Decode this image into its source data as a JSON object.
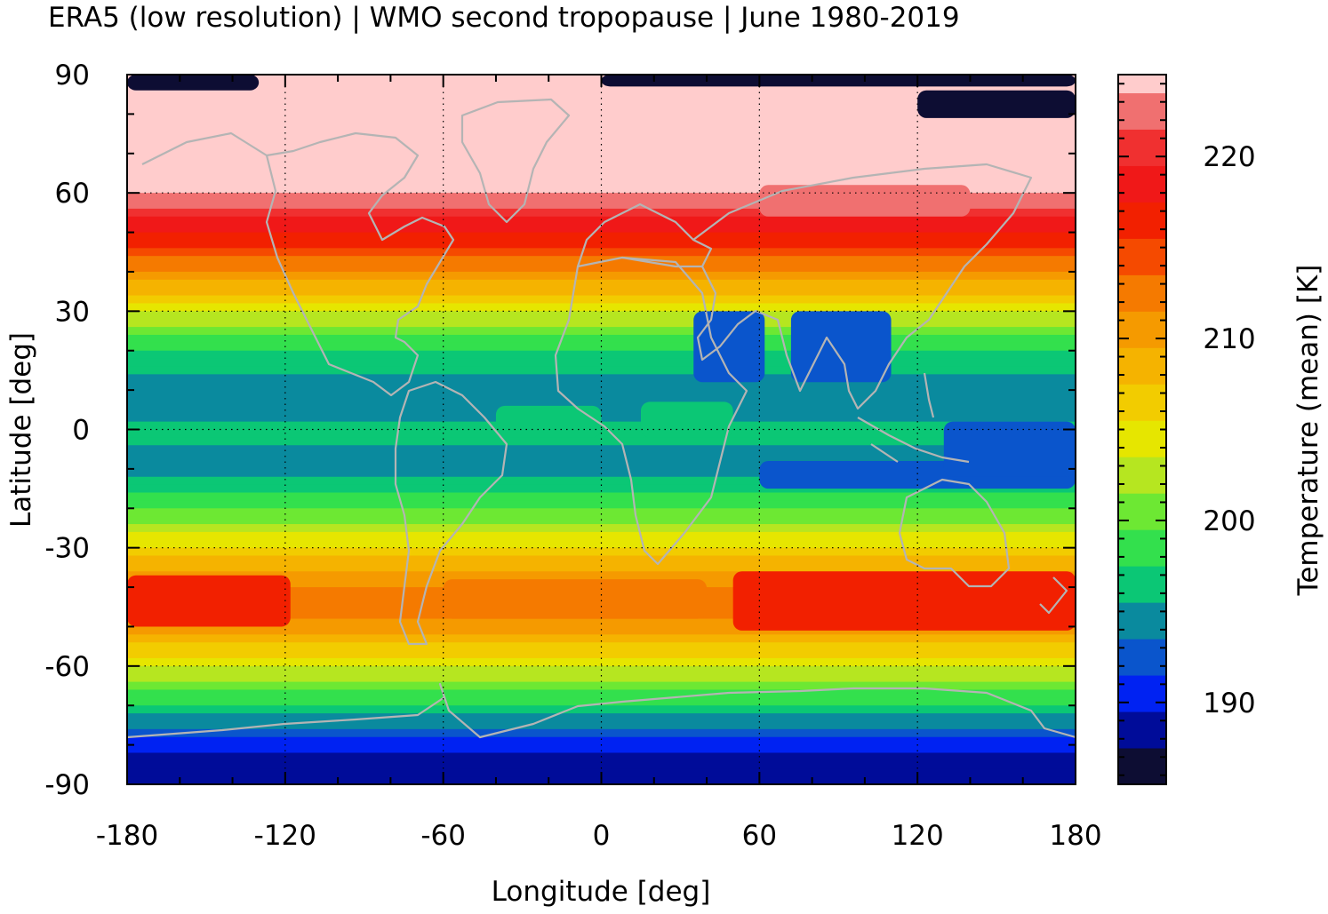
{
  "chart_data": {
    "type": "heatmap",
    "title": "ERA5 (low resolution) | WMO second tropopause | June 1980-2019",
    "xlabel": "Longitude [deg]",
    "ylabel": "Latitude [deg]",
    "colorbar_label": "Temperature (mean) [K]",
    "xlim": [
      -180,
      180
    ],
    "ylim": [
      -90,
      90
    ],
    "xticks": [
      "-180",
      "-120",
      "-60",
      "0",
      "60",
      "120",
      "180"
    ],
    "yticks": [
      "90",
      "60",
      "30",
      "0",
      "-30",
      "-60",
      "-90"
    ],
    "colorbar_range": [
      185.5,
      224.5
    ],
    "colorbar_ticks": [
      "220",
      "210",
      "200",
      "190"
    ],
    "colorbar_levels": [
      {
        "min": 185.5,
        "max": 187.5,
        "color": "#0d0d33"
      },
      {
        "min": 187.5,
        "max": 189.5,
        "color": "#000c99"
      },
      {
        "min": 189.5,
        "max": 191.5,
        "color": "#0022f2"
      },
      {
        "min": 191.5,
        "max": 193.5,
        "color": "#0a55cc"
      },
      {
        "min": 193.5,
        "max": 195.5,
        "color": "#0a8a9e"
      },
      {
        "min": 195.5,
        "max": 197.5,
        "color": "#0bc775"
      },
      {
        "min": 197.5,
        "max": 199.5,
        "color": "#33e04d"
      },
      {
        "min": 199.5,
        "max": 201.5,
        "color": "#6de833"
      },
      {
        "min": 201.5,
        "max": 203.5,
        "color": "#b6e620"
      },
      {
        "min": 203.5,
        "max": 205.5,
        "color": "#e6e600"
      },
      {
        "min": 205.5,
        "max": 207.5,
        "color": "#f2cc00"
      },
      {
        "min": 207.5,
        "max": 209.5,
        "color": "#f5b300"
      },
      {
        "min": 209.5,
        "max": 211.5,
        "color": "#f59a00"
      },
      {
        "min": 211.5,
        "max": 213.5,
        "color": "#f57a00"
      },
      {
        "min": 213.5,
        "max": 215.5,
        "color": "#f54a00"
      },
      {
        "min": 215.5,
        "max": 217.5,
        "color": "#f22000"
      },
      {
        "min": 217.5,
        "max": 219.5,
        "color": "#f01818"
      },
      {
        "min": 219.5,
        "max": 221.5,
        "color": "#f03030"
      },
      {
        "min": 221.5,
        "max": 223.5,
        "color": "#f07070"
      },
      {
        "min": 223.5,
        "max": 225.5,
        "color": "#ffcccc"
      }
    ],
    "zonal_profile": [
      {
        "lat": 90,
        "value": 224.5
      },
      {
        "lat": 80,
        "value": 224.5
      },
      {
        "lat": 65,
        "value": 224.5
      },
      {
        "lat": 62,
        "value": 224.0
      },
      {
        "lat": 58,
        "value": 222.5
      },
      {
        "lat": 55,
        "value": 220.5
      },
      {
        "lat": 51,
        "value": 218.0
      },
      {
        "lat": 46,
        "value": 215.0
      },
      {
        "lat": 42,
        "value": 212.5
      },
      {
        "lat": 38,
        "value": 210.0
      },
      {
        "lat": 34,
        "value": 207.0
      },
      {
        "lat": 30,
        "value": 204.0
      },
      {
        "lat": 26,
        "value": 201.0
      },
      {
        "lat": 22,
        "value": 198.5
      },
      {
        "lat": 18,
        "value": 196.0
      },
      {
        "lat": 12,
        "value": 195.0
      },
      {
        "lat": 4,
        "value": 195.0
      },
      {
        "lat": 0,
        "value": 196.0
      },
      {
        "lat": -4,
        "value": 195.5
      },
      {
        "lat": -10,
        "value": 195.0
      },
      {
        "lat": -14,
        "value": 196.0
      },
      {
        "lat": -18,
        "value": 198.0
      },
      {
        "lat": -22,
        "value": 200.5
      },
      {
        "lat": -26,
        "value": 203.0
      },
      {
        "lat": -30,
        "value": 206.0
      },
      {
        "lat": -34,
        "value": 208.5
      },
      {
        "lat": -38,
        "value": 211.0
      },
      {
        "lat": -43,
        "value": 212.5
      },
      {
        "lat": -48,
        "value": 211.5
      },
      {
        "lat": -52,
        "value": 209.5
      },
      {
        "lat": -56,
        "value": 206.5
      },
      {
        "lat": -60,
        "value": 204.0
      },
      {
        "lat": -64,
        "value": 201.0
      },
      {
        "lat": -68,
        "value": 198.5
      },
      {
        "lat": -72,
        "value": 196.0
      },
      {
        "lat": -76,
        "value": 193.0
      },
      {
        "lat": -80,
        "value": 190.5
      },
      {
        "lat": -84,
        "value": 188.5
      },
      {
        "lat": -90,
        "value": 188.0
      }
    ],
    "anomalies": [
      {
        "name": "south-pacific-jet",
        "lon": [
          -180,
          -118
        ],
        "lat": [
          -50,
          -37
        ],
        "value": 216.5
      },
      {
        "name": "south-indian-jet",
        "lon": [
          50,
          180
        ],
        "lat": [
          -51,
          -36
        ],
        "value": 216.5
      },
      {
        "name": "south-atlantic-band",
        "lon": [
          -60,
          40
        ],
        "lat": [
          -48,
          -38
        ],
        "value": 212.5
      },
      {
        "name": "asian-monsoon-west",
        "lon": [
          35,
          62
        ],
        "lat": [
          12,
          30
        ],
        "value": 192.5
      },
      {
        "name": "asian-monsoon-east",
        "lon": [
          72,
          110
        ],
        "lat": [
          12,
          30
        ],
        "value": 192.5
      },
      {
        "name": "north-pacific-ridge",
        "lon": [
          60,
          140
        ],
        "lat": [
          54,
          62
        ],
        "value": 223.0
      },
      {
        "name": "maritime-continent",
        "lon": [
          60,
          180
        ],
        "lat": [
          -15,
          -8
        ],
        "value": 192.5
      },
      {
        "name": "western-pacific-blue",
        "lon": [
          130,
          180
        ],
        "lat": [
          -12,
          2
        ],
        "value": 192.5
      },
      {
        "name": "equatorial-green-atlantic",
        "lon": [
          -40,
          0
        ],
        "lat": [
          -2,
          6
        ],
        "value": 196.5
      },
      {
        "name": "equatorial-green-indian",
        "lon": [
          15,
          50
        ],
        "lat": [
          -2,
          7
        ],
        "value": 196.5
      },
      {
        "name": "arctic-pole-dark",
        "lon": [
          -180,
          -130
        ],
        "lat": [
          86,
          90
        ],
        "value": 186.0
      },
      {
        "name": "arctic-pole-dark-east",
        "lon": [
          0,
          180
        ],
        "lat": [
          87,
          90
        ],
        "value": 186.0
      },
      {
        "name": "arctic-siberia-dark",
        "lon": [
          120,
          180
        ],
        "lat": [
          79,
          86
        ],
        "value": 186.0
      }
    ],
    "grid": true,
    "coastlines": true
  }
}
